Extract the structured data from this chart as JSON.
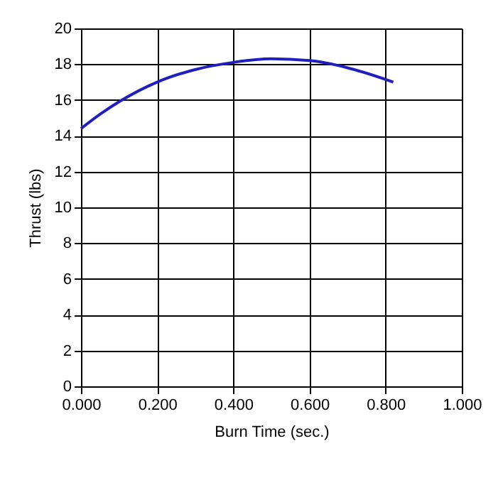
{
  "chart_data": {
    "type": "line",
    "xlabel": "Burn Time (sec.)",
    "ylabel": "Thrust (lbs)",
    "x": [
      0,
      0.05,
      0.1,
      0.2,
      0.3,
      0.4,
      0.5,
      0.6,
      0.7,
      0.82
    ],
    "series": [
      {
        "color": "#1f1fbf",
        "values": [
          14.4,
          15.2,
          15.9,
          17.0,
          17.7,
          18.1,
          18.3,
          18.2,
          17.8,
          17.0
        ]
      }
    ],
    "xlim": [
      0,
      1
    ],
    "xticks": [
      {
        "value": 0,
        "label": "0.000"
      },
      {
        "value": 0.2,
        "label": "0.200"
      },
      {
        "value": 0.4,
        "label": "0.400"
      },
      {
        "value": 0.6,
        "label": "0.600"
      },
      {
        "value": 0.8,
        "label": "0.800"
      },
      {
        "value": 1,
        "label": "1.000"
      }
    ],
    "ylim": [
      0,
      20
    ],
    "yticks": [
      0,
      2,
      4,
      6,
      8,
      10,
      12,
      14,
      16,
      18,
      20
    ],
    "grid": true,
    "marker": "none",
    "line_style": "solid"
  }
}
